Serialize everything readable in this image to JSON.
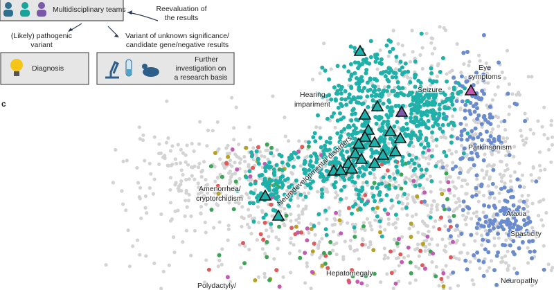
{
  "flow": {
    "teams": "Multidisciplinary teams",
    "reevaluation": [
      "Reevaluation of",
      "the results"
    ],
    "pathogenic": [
      "(Likely) pathogenic",
      "variant"
    ],
    "vus": [
      "Variant of unknown significance/",
      "candidate gene/negative results"
    ],
    "diagnosis": "Diagnosis",
    "research": [
      "Further",
      "investigation on",
      "a research basis"
    ]
  },
  "panel_label": "c",
  "map_labels": {
    "hearing": [
      "Hearing",
      "impariment"
    ],
    "seizure": "Seizure",
    "eye": [
      "Eye",
      "symptoms"
    ],
    "parkinsonism": "Parkinsonism",
    "ndd": "Neurodevelopmental disorders",
    "amenorrhea": [
      "Amenorrhea/",
      "cryptorchidism"
    ],
    "ataxia": "Ataxia",
    "spasticity": "Spasticity",
    "hepatomegaly": "Hepatomegaly",
    "neuropathy": "Neuropathy",
    "polydactyly": "Polydactyly/"
  }
}
